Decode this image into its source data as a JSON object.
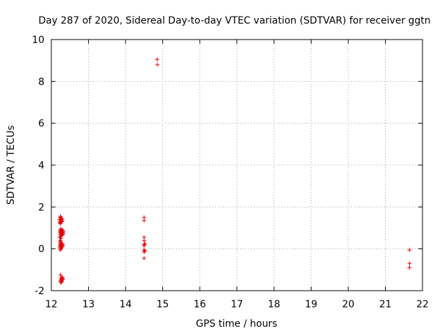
{
  "chart_data": {
    "type": "scatter",
    "title": "Day 287 of 2020, Sidereal Day-to-day VTEC variation (SDTVAR) for receiver ggtn",
    "xlabel": "GPS time / hours",
    "ylabel": "SDTVAR / TECUs",
    "xlim": [
      12,
      22
    ],
    "ylim": [
      -2,
      10
    ],
    "xticks": [
      "12",
      "13",
      "14",
      "15",
      "16",
      "17",
      "18",
      "19",
      "20",
      "21",
      "22"
    ],
    "yticks": [
      "-2",
      "0",
      "2",
      "4",
      "6",
      "8",
      "10"
    ],
    "grid": true,
    "point_color": "#e00000",
    "marker": "plus",
    "series": [
      {
        "name": "SDTVAR",
        "points": [
          [
            12.22,
            1.4
          ],
          [
            12.22,
            1.25
          ],
          [
            12.23,
            0.8
          ],
          [
            12.23,
            0.55
          ],
          [
            12.23,
            0.35
          ],
          [
            12.23,
            0.15
          ],
          [
            12.23,
            0.05
          ],
          [
            12.24,
            1.5
          ],
          [
            12.24,
            1.3
          ],
          [
            12.24,
            0.9
          ],
          [
            12.24,
            0.7
          ],
          [
            12.24,
            0.25
          ],
          [
            12.24,
            -0.05
          ],
          [
            12.25,
            1.55
          ],
          [
            12.25,
            1.2
          ],
          [
            12.25,
            0.85
          ],
          [
            12.25,
            0.6
          ],
          [
            12.25,
            0.4
          ],
          [
            12.25,
            0.2
          ],
          [
            12.25,
            0.1
          ],
          [
            12.25,
            -1.25
          ],
          [
            12.25,
            -1.5
          ],
          [
            12.25,
            -1.6
          ],
          [
            12.26,
            1.45
          ],
          [
            12.26,
            1.35
          ],
          [
            12.26,
            0.95
          ],
          [
            12.26,
            0.75
          ],
          [
            12.26,
            0.5
          ],
          [
            12.26,
            0.3
          ],
          [
            12.26,
            0.0
          ],
          [
            12.26,
            -1.4
          ],
          [
            12.26,
            -1.55
          ],
          [
            12.27,
            1.4
          ],
          [
            12.27,
            0.85
          ],
          [
            12.27,
            0.65
          ],
          [
            12.27,
            0.2
          ],
          [
            12.27,
            0.05
          ],
          [
            12.27,
            -1.5
          ],
          [
            12.27,
            -1.6
          ],
          [
            12.28,
            1.3
          ],
          [
            12.28,
            0.8
          ],
          [
            12.28,
            0.7
          ],
          [
            12.28,
            0.15
          ],
          [
            12.28,
            -1.45
          ],
          [
            12.28,
            -1.55
          ],
          [
            12.29,
            1.45
          ],
          [
            12.29,
            0.9
          ],
          [
            12.29,
            0.75
          ],
          [
            12.29,
            0.25
          ],
          [
            12.29,
            0.1
          ],
          [
            12.29,
            -1.35
          ],
          [
            12.29,
            -1.5
          ],
          [
            12.3,
            1.35
          ],
          [
            12.3,
            0.85
          ],
          [
            12.3,
            0.7
          ],
          [
            12.3,
            0.2
          ],
          [
            12.3,
            -1.4
          ],
          [
            12.31,
            0.8
          ],
          [
            12.31,
            0.75
          ],
          [
            12.31,
            0.15
          ],
          [
            12.31,
            -1.45
          ],
          [
            12.32,
            0.85
          ],
          [
            12.32,
            0.7
          ],
          [
            14.5,
            1.5
          ],
          [
            14.5,
            1.35
          ],
          [
            14.5,
            0.55
          ],
          [
            14.5,
            0.4
          ],
          [
            14.5,
            0.2
          ],
          [
            14.5,
            0.15
          ],
          [
            14.5,
            -0.05
          ],
          [
            14.5,
            -0.15
          ],
          [
            14.5,
            -0.45
          ],
          [
            14.52,
            0.25
          ],
          [
            14.52,
            -0.1
          ],
          [
            14.85,
            9.05
          ],
          [
            14.86,
            8.8
          ],
          [
            21.65,
            -0.05
          ],
          [
            21.65,
            -0.7
          ],
          [
            21.65,
            -0.9
          ]
        ]
      }
    ]
  }
}
